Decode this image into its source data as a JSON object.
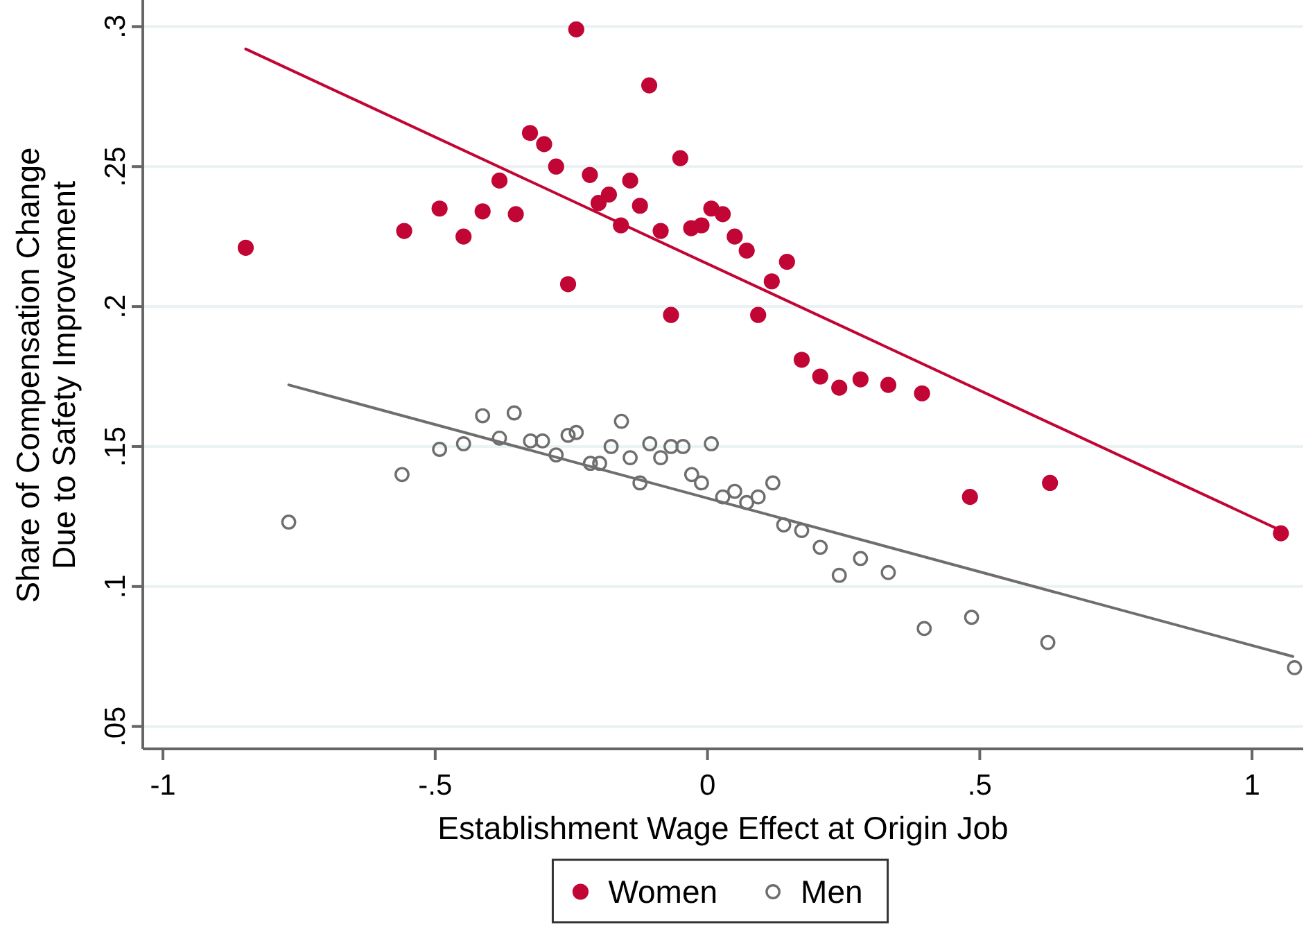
{
  "chart_data": {
    "type": "scatter",
    "xlabel": "Establishment Wage Effect at Origin Job",
    "ylabel": "Share of Compensation Change\nDue to Safety Improvement",
    "xlim": [
      -1.037,
      1.094
    ],
    "ylim": [
      0.042,
      0.309
    ],
    "xticks": [
      -1,
      {
        "value": -0.5,
        "label": "-.5"
      },
      0,
      {
        "value": 0.5,
        "label": ".5"
      },
      1
    ],
    "yticks": [
      {
        "value": 0.05,
        "label": ".05"
      },
      {
        "value": 0.1,
        "label": ".1"
      },
      {
        "value": 0.15,
        "label": ".15"
      },
      {
        "value": 0.2,
        "label": ".2"
      },
      {
        "value": 0.25,
        "label": ".25"
      },
      {
        "value": 0.3,
        "label": ".3"
      }
    ],
    "grid": "y",
    "legend": "bottom",
    "series": [
      {
        "name": "Women",
        "color": "#c10534",
        "marker": "circle",
        "x": [
          -0.848,
          -0.557,
          -0.492,
          -0.448,
          -0.413,
          -0.382,
          -0.352,
          -0.326,
          -0.3,
          -0.278,
          -0.256,
          -0.241,
          -0.216,
          -0.2,
          -0.181,
          -0.159,
          -0.142,
          -0.124,
          -0.107,
          -0.086,
          -0.067,
          -0.05,
          -0.03,
          -0.011,
          0.007,
          0.028,
          0.05,
          0.072,
          0.093,
          0.118,
          0.146,
          0.173,
          0.207,
          0.242,
          0.281,
          0.332,
          0.394,
          0.482,
          0.629,
          1.053
        ],
        "values": [
          0.221,
          0.227,
          0.235,
          0.225,
          0.234,
          0.245,
          0.233,
          0.262,
          0.258,
          0.25,
          0.208,
          0.299,
          0.247,
          0.237,
          0.24,
          0.229,
          0.245,
          0.236,
          0.279,
          0.227,
          0.197,
          0.253,
          0.228,
          0.229,
          0.235,
          0.233,
          0.225,
          0.22,
          0.197,
          0.209,
          0.216,
          0.181,
          0.175,
          0.171,
          0.174,
          0.172,
          0.169,
          0.132,
          0.137,
          0.119
        ]
      },
      {
        "name": "Men",
        "color": "#6e6e6e",
        "marker": "circle-open",
        "x": [
          -0.769,
          -0.561,
          -0.492,
          -0.448,
          -0.413,
          -0.382,
          -0.355,
          -0.325,
          -0.303,
          -0.278,
          -0.256,
          -0.241,
          -0.215,
          -0.198,
          -0.177,
          -0.158,
          -0.142,
          -0.124,
          -0.106,
          -0.086,
          -0.067,
          -0.045,
          -0.029,
          -0.011,
          0.007,
          0.028,
          0.05,
          0.072,
          0.093,
          0.12,
          0.14,
          0.173,
          0.207,
          0.242,
          0.281,
          0.332,
          0.398,
          0.485,
          0.625,
          1.078
        ],
        "values": [
          0.123,
          0.14,
          0.149,
          0.151,
          0.161,
          0.153,
          0.162,
          0.152,
          0.152,
          0.147,
          0.154,
          0.155,
          0.144,
          0.144,
          0.15,
          0.159,
          0.146,
          0.137,
          0.151,
          0.146,
          0.15,
          0.15,
          0.14,
          0.137,
          0.151,
          0.132,
          0.134,
          0.13,
          0.132,
          0.137,
          0.122,
          0.12,
          0.114,
          0.104,
          0.11,
          0.105,
          0.085,
          0.089,
          0.08,
          0.071
        ]
      },
      {
        "type": "line",
        "color": "#c10534",
        "x": [
          -0.848,
          1.053
        ],
        "values": [
          0.292,
          0.12
        ]
      },
      {
        "type": "line",
        "color": "#6e6e6e",
        "x": [
          -0.769,
          1.075
        ],
        "values": [
          0.172,
          0.075
        ]
      }
    ]
  }
}
